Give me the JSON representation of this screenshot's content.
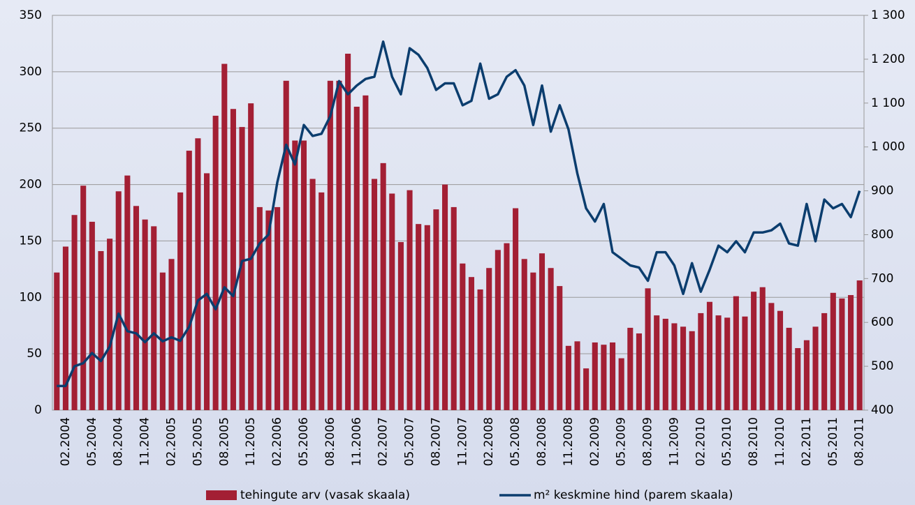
{
  "chart_data": {
    "type": "bar-line",
    "categories": [
      null,
      "02.2004",
      null,
      null,
      "05.2004",
      null,
      null,
      "08.2004",
      null,
      null,
      "11.2004",
      null,
      null,
      "02.2005",
      null,
      null,
      "05.2005",
      null,
      null,
      "08.2005",
      null,
      null,
      "11.2005",
      null,
      null,
      "02.2006",
      null,
      null,
      "05.2006",
      null,
      null,
      "08.2006",
      null,
      null,
      "11.2006",
      null,
      null,
      "02.2007",
      null,
      null,
      "05.2007",
      null,
      null,
      "08.2007",
      null,
      null,
      "11.2007",
      null,
      null,
      "02.2008",
      null,
      null,
      "05.2008",
      null,
      null,
      "08.2008",
      null,
      null,
      "11.2008",
      null,
      null,
      "02.2009",
      null,
      null,
      "05.2009",
      null,
      null,
      "08.2009",
      null,
      null,
      "11.2009",
      null,
      null,
      "02.2010",
      null,
      null,
      "05.2010",
      null,
      null,
      "08.2010",
      null,
      null,
      "11.2010",
      null,
      null,
      "02.2011",
      null,
      null,
      "05.2011",
      null,
      null,
      "08.2011"
    ],
    "series": [
      {
        "name": "tehingute arv (vasak skaala)",
        "type": "bar",
        "color": "#a31f34",
        "values": [
          122,
          145,
          173,
          199,
          167,
          141,
          152,
          194,
          208,
          181,
          169,
          163,
          122,
          134,
          193,
          230,
          241,
          210,
          261,
          307,
          267,
          251,
          272,
          180,
          177,
          180,
          292,
          239,
          239,
          205,
          193,
          292,
          292,
          316,
          269,
          279,
          205,
          219,
          192,
          149,
          195,
          165,
          164,
          178,
          200,
          180,
          130,
          118,
          107,
          126,
          142,
          148,
          179,
          134,
          122,
          139,
          126,
          110,
          57,
          61,
          37,
          60,
          58,
          60,
          46,
          73,
          68,
          108,
          84,
          81,
          77,
          74,
          70,
          86,
          96,
          84,
          82,
          101,
          83,
          105,
          109,
          95,
          88,
          73,
          55,
          62,
          74,
          86,
          104,
          99,
          102,
          115
        ]
      },
      {
        "name": "m² keskmine hind (parem skaala)",
        "type": "line",
        "axis": "y2",
        "color": "#0b3d6e",
        "values": [
          455,
          455,
          500,
          507,
          530,
          512,
          545,
          620,
          580,
          575,
          555,
          575,
          557,
          566,
          558,
          590,
          650,
          665,
          630,
          680,
          660,
          740,
          745,
          780,
          800,
          920,
          1005,
          960,
          1050,
          1025,
          1030,
          1070,
          1150,
          1120,
          1140,
          1155,
          1160,
          1240,
          1160,
          1120,
          1225,
          1210,
          1180,
          1130,
          1145,
          1145,
          1095,
          1105,
          1190,
          1110,
          1120,
          1160,
          1175,
          1140,
          1050,
          1140,
          1035,
          1095,
          1040,
          940,
          860,
          830,
          870,
          760,
          745,
          730,
          725,
          695,
          760,
          760,
          730,
          665,
          735,
          670,
          720,
          775,
          760,
          785,
          760,
          805,
          805,
          810,
          825,
          780,
          775,
          870,
          785,
          880,
          860,
          870,
          840,
          900
        ]
      }
    ],
    "ylim": [
      0,
      350
    ],
    "yticks": [
      0,
      50,
      100,
      150,
      200,
      250,
      300,
      350
    ],
    "y2lim": [
      400,
      1300
    ],
    "y2ticks": [
      400,
      500,
      600,
      700,
      800,
      900,
      {
        "value": 1000,
        "label": "1 000"
      },
      {
        "value": 1100,
        "label": "1 100"
      },
      {
        "value": 1200,
        "label": "1 200"
      },
      {
        "value": 1300,
        "label": "1 300"
      }
    ],
    "grid": true,
    "legend": "bottom"
  }
}
